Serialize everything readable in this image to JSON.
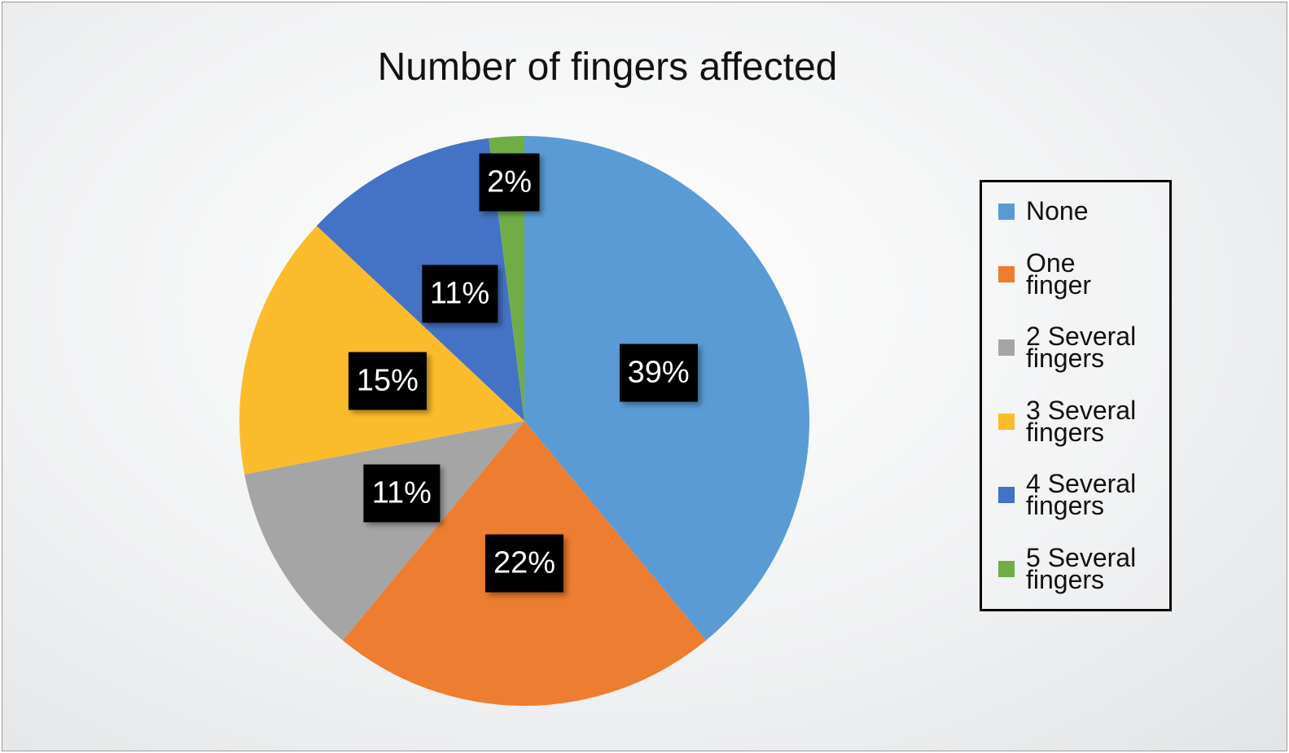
{
  "chart_data": {
    "type": "pie",
    "title": "Number of fingers affected",
    "categories": [
      "None",
      "One finger",
      "2 Several fingers",
      "3 Several fingers",
      "4 Several fingers",
      "5 Several fingers"
    ],
    "values": [
      39,
      22,
      11,
      15,
      11,
      2
    ],
    "value_labels": [
      "39%",
      "22%",
      "11%",
      "15%",
      "11%",
      "2%"
    ],
    "colors": [
      "#5b9bd5",
      "#ed7d31",
      "#a5a5a5",
      "#fbbc2b",
      "#4472c4",
      "#70ad47"
    ],
    "legend": "right"
  }
}
